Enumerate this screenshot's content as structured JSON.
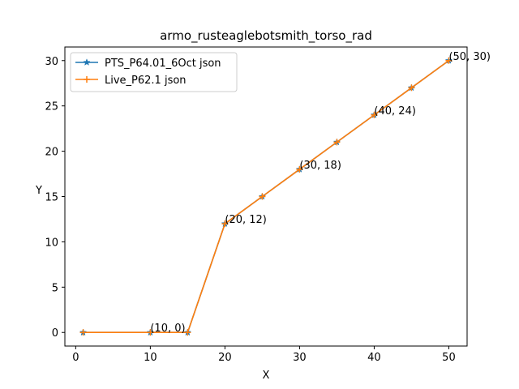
{
  "chart_data": {
    "type": "line",
    "title": "armo_rusteaglebotsmith_torso_rad",
    "xlabel": "X",
    "ylabel": "Y",
    "xlim": [
      -1.45,
      52.45
    ],
    "ylim": [
      -1.5,
      31.5
    ],
    "xticks": [
      0,
      10,
      20,
      30,
      40,
      50
    ],
    "yticks": [
      0,
      5,
      10,
      15,
      20,
      25,
      30
    ],
    "grid": false,
    "legend_position": "top-left",
    "series": [
      {
        "name": "PTS_P64.01_6Oct json",
        "color": "#1f77b4",
        "marker": "star",
        "x": [
          1,
          10,
          15,
          20,
          25,
          30,
          35,
          40,
          45,
          50
        ],
        "y": [
          0,
          0,
          0,
          12,
          15,
          18,
          21,
          24,
          27,
          30
        ]
      },
      {
        "name": "Live_P62.1 json",
        "color": "#ff7f0e",
        "marker": "plus",
        "x": [
          1,
          10,
          15,
          20,
          25,
          30,
          35,
          40,
          45,
          50
        ],
        "y": [
          0,
          0,
          0,
          12,
          15,
          18,
          21,
          24,
          27,
          30
        ]
      }
    ],
    "annotations": [
      {
        "text": "(10, 0)",
        "x": 10,
        "y": 0
      },
      {
        "text": "(20, 12)",
        "x": 20,
        "y": 12
      },
      {
        "text": "(30, 18)",
        "x": 30,
        "y": 18
      },
      {
        "text": "(40, 24)",
        "x": 40,
        "y": 24
      },
      {
        "text": "(50, 30)",
        "x": 50,
        "y": 30
      }
    ]
  }
}
